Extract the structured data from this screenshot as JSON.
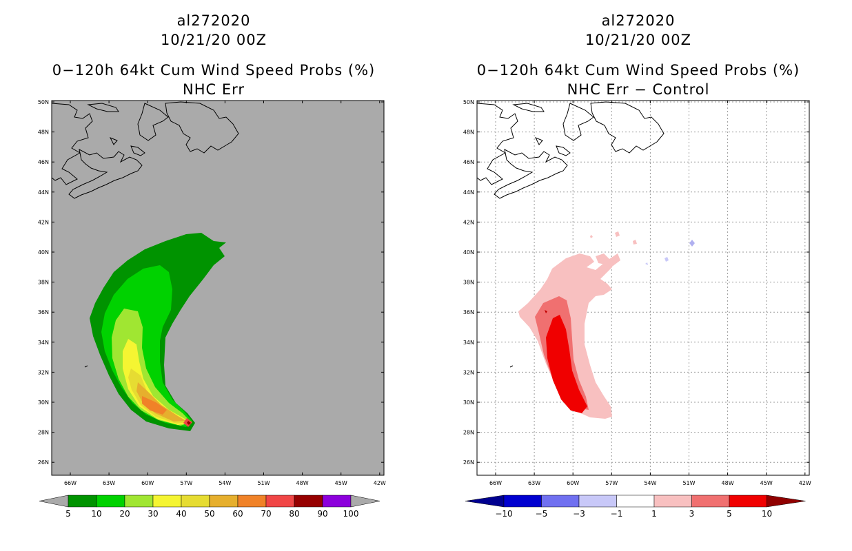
{
  "left": {
    "storm": "al272020",
    "date": "10/21/20 00Z",
    "product": "0−120h 64kt Cum Wind Speed Probs (%)",
    "subtitle": "NHC Err",
    "colorbar": {
      "labels": [
        "5",
        "10",
        "20",
        "30",
        "40",
        "50",
        "60",
        "70",
        "80",
        "90",
        "100"
      ],
      "colors": [
        "#009300",
        "#00d200",
        "#a0e632",
        "#f5f532",
        "#e6dc32",
        "#e6af2d",
        "#f08228",
        "#f04646",
        "#960000",
        "#8c00dc"
      ],
      "extend_color": "#aaaaaa"
    },
    "background": "#aaaaaa"
  },
  "right": {
    "storm": "al272020",
    "date": "10/21/20 00Z",
    "product": "0−120h 64kt Cum Wind Speed Probs (%)",
    "subtitle": "NHC Err − Control",
    "colorbar": {
      "labels": [
        "−10",
        "−5",
        "−3",
        "−1",
        "1",
        "3",
        "5",
        "10"
      ],
      "colors": [
        "#0000d0",
        "#7070f0",
        "#c8c8f8",
        "#ffffff",
        "#f8c0c0",
        "#f07070",
        "#f00000"
      ],
      "low_color": "#000090",
      "high_color": "#900000"
    },
    "background": "#ffffff"
  },
  "axes": {
    "lat_labels": [
      "50N",
      "48N",
      "46N",
      "44N",
      "42N",
      "40N",
      "38N",
      "36N",
      "34N",
      "32N",
      "30N",
      "28N",
      "26N"
    ],
    "lon_labels": [
      "66W",
      "63W",
      "60W",
      "57W",
      "54W",
      "51W",
      "48W",
      "45W",
      "42W"
    ]
  }
}
